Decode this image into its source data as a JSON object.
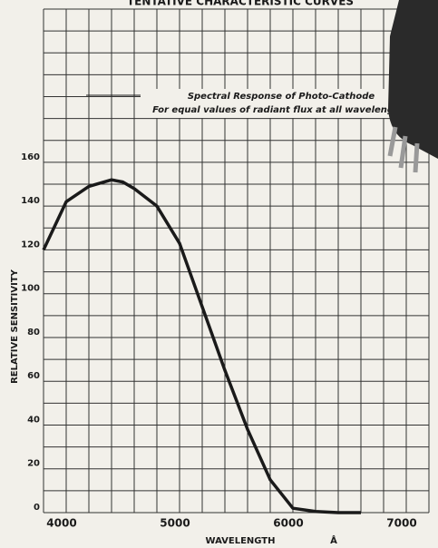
{
  "chart_data": {
    "type": "line",
    "title": "TENTATIVE CHARACTERISTIC CURVES",
    "annotation": [
      "Spectral Response of Photo-Cathode",
      "For equal values of radiant flux at all wavelengths"
    ],
    "xlabel": "WAVELENGTH",
    "xunit": "Å",
    "ylabel": "RELATIVE SENSITIVITY",
    "x": [
      4000,
      4200,
      4400,
      4600,
      4700,
      4800,
      5000,
      5200,
      5400,
      5600,
      5800,
      6000,
      6200,
      6400,
      6600,
      6800
    ],
    "series": [
      {
        "name": "Spectral Response of Photo-Cathode",
        "color": "#1a1a1a",
        "values": [
          120,
          142,
          149,
          152,
          151,
          148,
          140,
          123,
          94,
          65,
          38,
          15,
          2,
          0.5,
          0,
          0
        ]
      }
    ],
    "xlim": [
      4000,
      7400
    ],
    "ylim": [
      0,
      230
    ],
    "xticks": [
      4000,
      5000,
      6000,
      7000
    ],
    "yticks": [
      0,
      20,
      40,
      60,
      80,
      100,
      120,
      140,
      160
    ],
    "xgrid": [
      4000,
      4200,
      4400,
      4600,
      4800,
      5000,
      5200,
      5400,
      5600,
      5800,
      6000,
      6200,
      6400,
      6600,
      6800,
      7000,
      7200,
      7400
    ],
    "ygrid": [
      0,
      10,
      20,
      30,
      40,
      50,
      60,
      70,
      80,
      90,
      100,
      110,
      120,
      130,
      140,
      150,
      160,
      170,
      180,
      190,
      200,
      210,
      220,
      230
    ],
    "grid": true
  }
}
